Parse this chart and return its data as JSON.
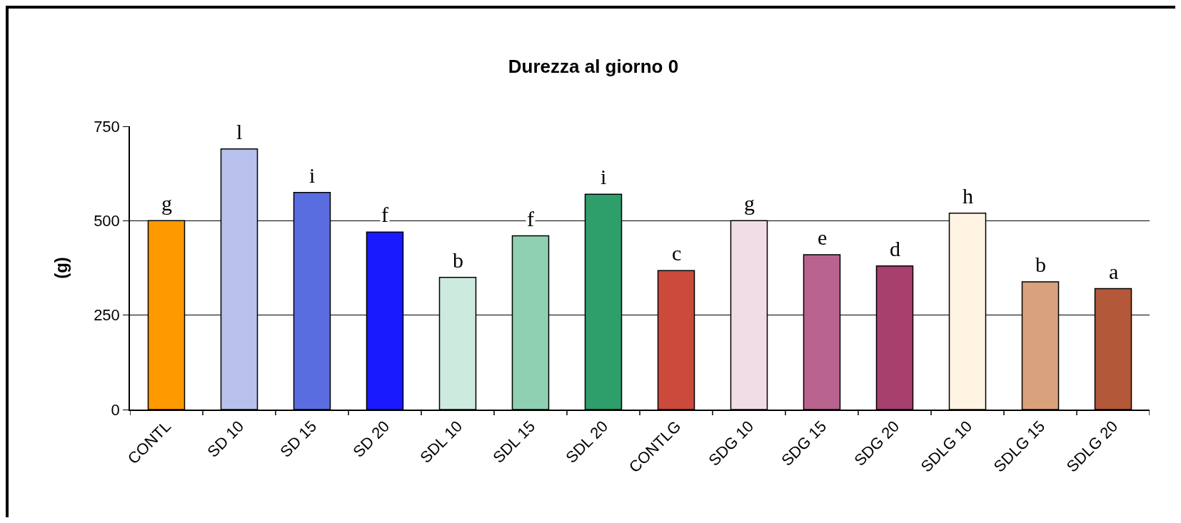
{
  "chart_data": {
    "type": "bar",
    "title": "Durezza al giorno 0",
    "ylabel": "(g)",
    "categories": [
      "CONTL",
      "SD 10",
      "SD 15",
      "SD 20",
      "SDL 10",
      "SDL 15",
      "SDL 20",
      "CONTLG",
      "SDG 10",
      "SDG 15",
      "SDG 20",
      "SDLG 10",
      "SDLG 15",
      "SDLG 20"
    ],
    "values": [
      500,
      690,
      575,
      470,
      350,
      460,
      570,
      368,
      500,
      410,
      380,
      520,
      338,
      320
    ],
    "colors": [
      "#ff9900",
      "#b8c0ec",
      "#5a6de0",
      "#1a1aff",
      "#cdeadf",
      "#8fd0b2",
      "#2e9e6b",
      "#cc4a3c",
      "#f0dde6",
      "#b8648e",
      "#a8406e",
      "#fff4e2",
      "#d9a27c",
      "#b4583a"
    ],
    "ylim": [
      0,
      750
    ],
    "yticks": [
      0,
      250,
      500,
      750
    ],
    "grid": "y",
    "annotations": [
      {
        "text": "g",
        "x": "CONTL",
        "y": 500
      },
      {
        "text": "l",
        "x": "SD 10",
        "y": 690
      },
      {
        "text": "i",
        "x": "SD 15",
        "y": 575
      },
      {
        "text": "f",
        "x": "SD 20",
        "y": 470
      },
      {
        "text": "b",
        "x": "SDL 10",
        "y": 350
      },
      {
        "text": "f",
        "x": "SDL 15",
        "y": 460
      },
      {
        "text": "i",
        "x": "SDL 20",
        "y": 570
      },
      {
        "text": "c",
        "x": "CONTLG",
        "y": 368
      },
      {
        "text": "g",
        "x": "SDG 10",
        "y": 500
      },
      {
        "text": "e",
        "x": "SDG 15",
        "y": 410
      },
      {
        "text": "d",
        "x": "SDG 20",
        "y": 380
      },
      {
        "text": "h",
        "x": "SDLG 10",
        "y": 520
      },
      {
        "text": "b",
        "x": "SDLG 15",
        "y": 338
      },
      {
        "text": "a",
        "x": "SDLG 20",
        "y": 320
      }
    ]
  }
}
